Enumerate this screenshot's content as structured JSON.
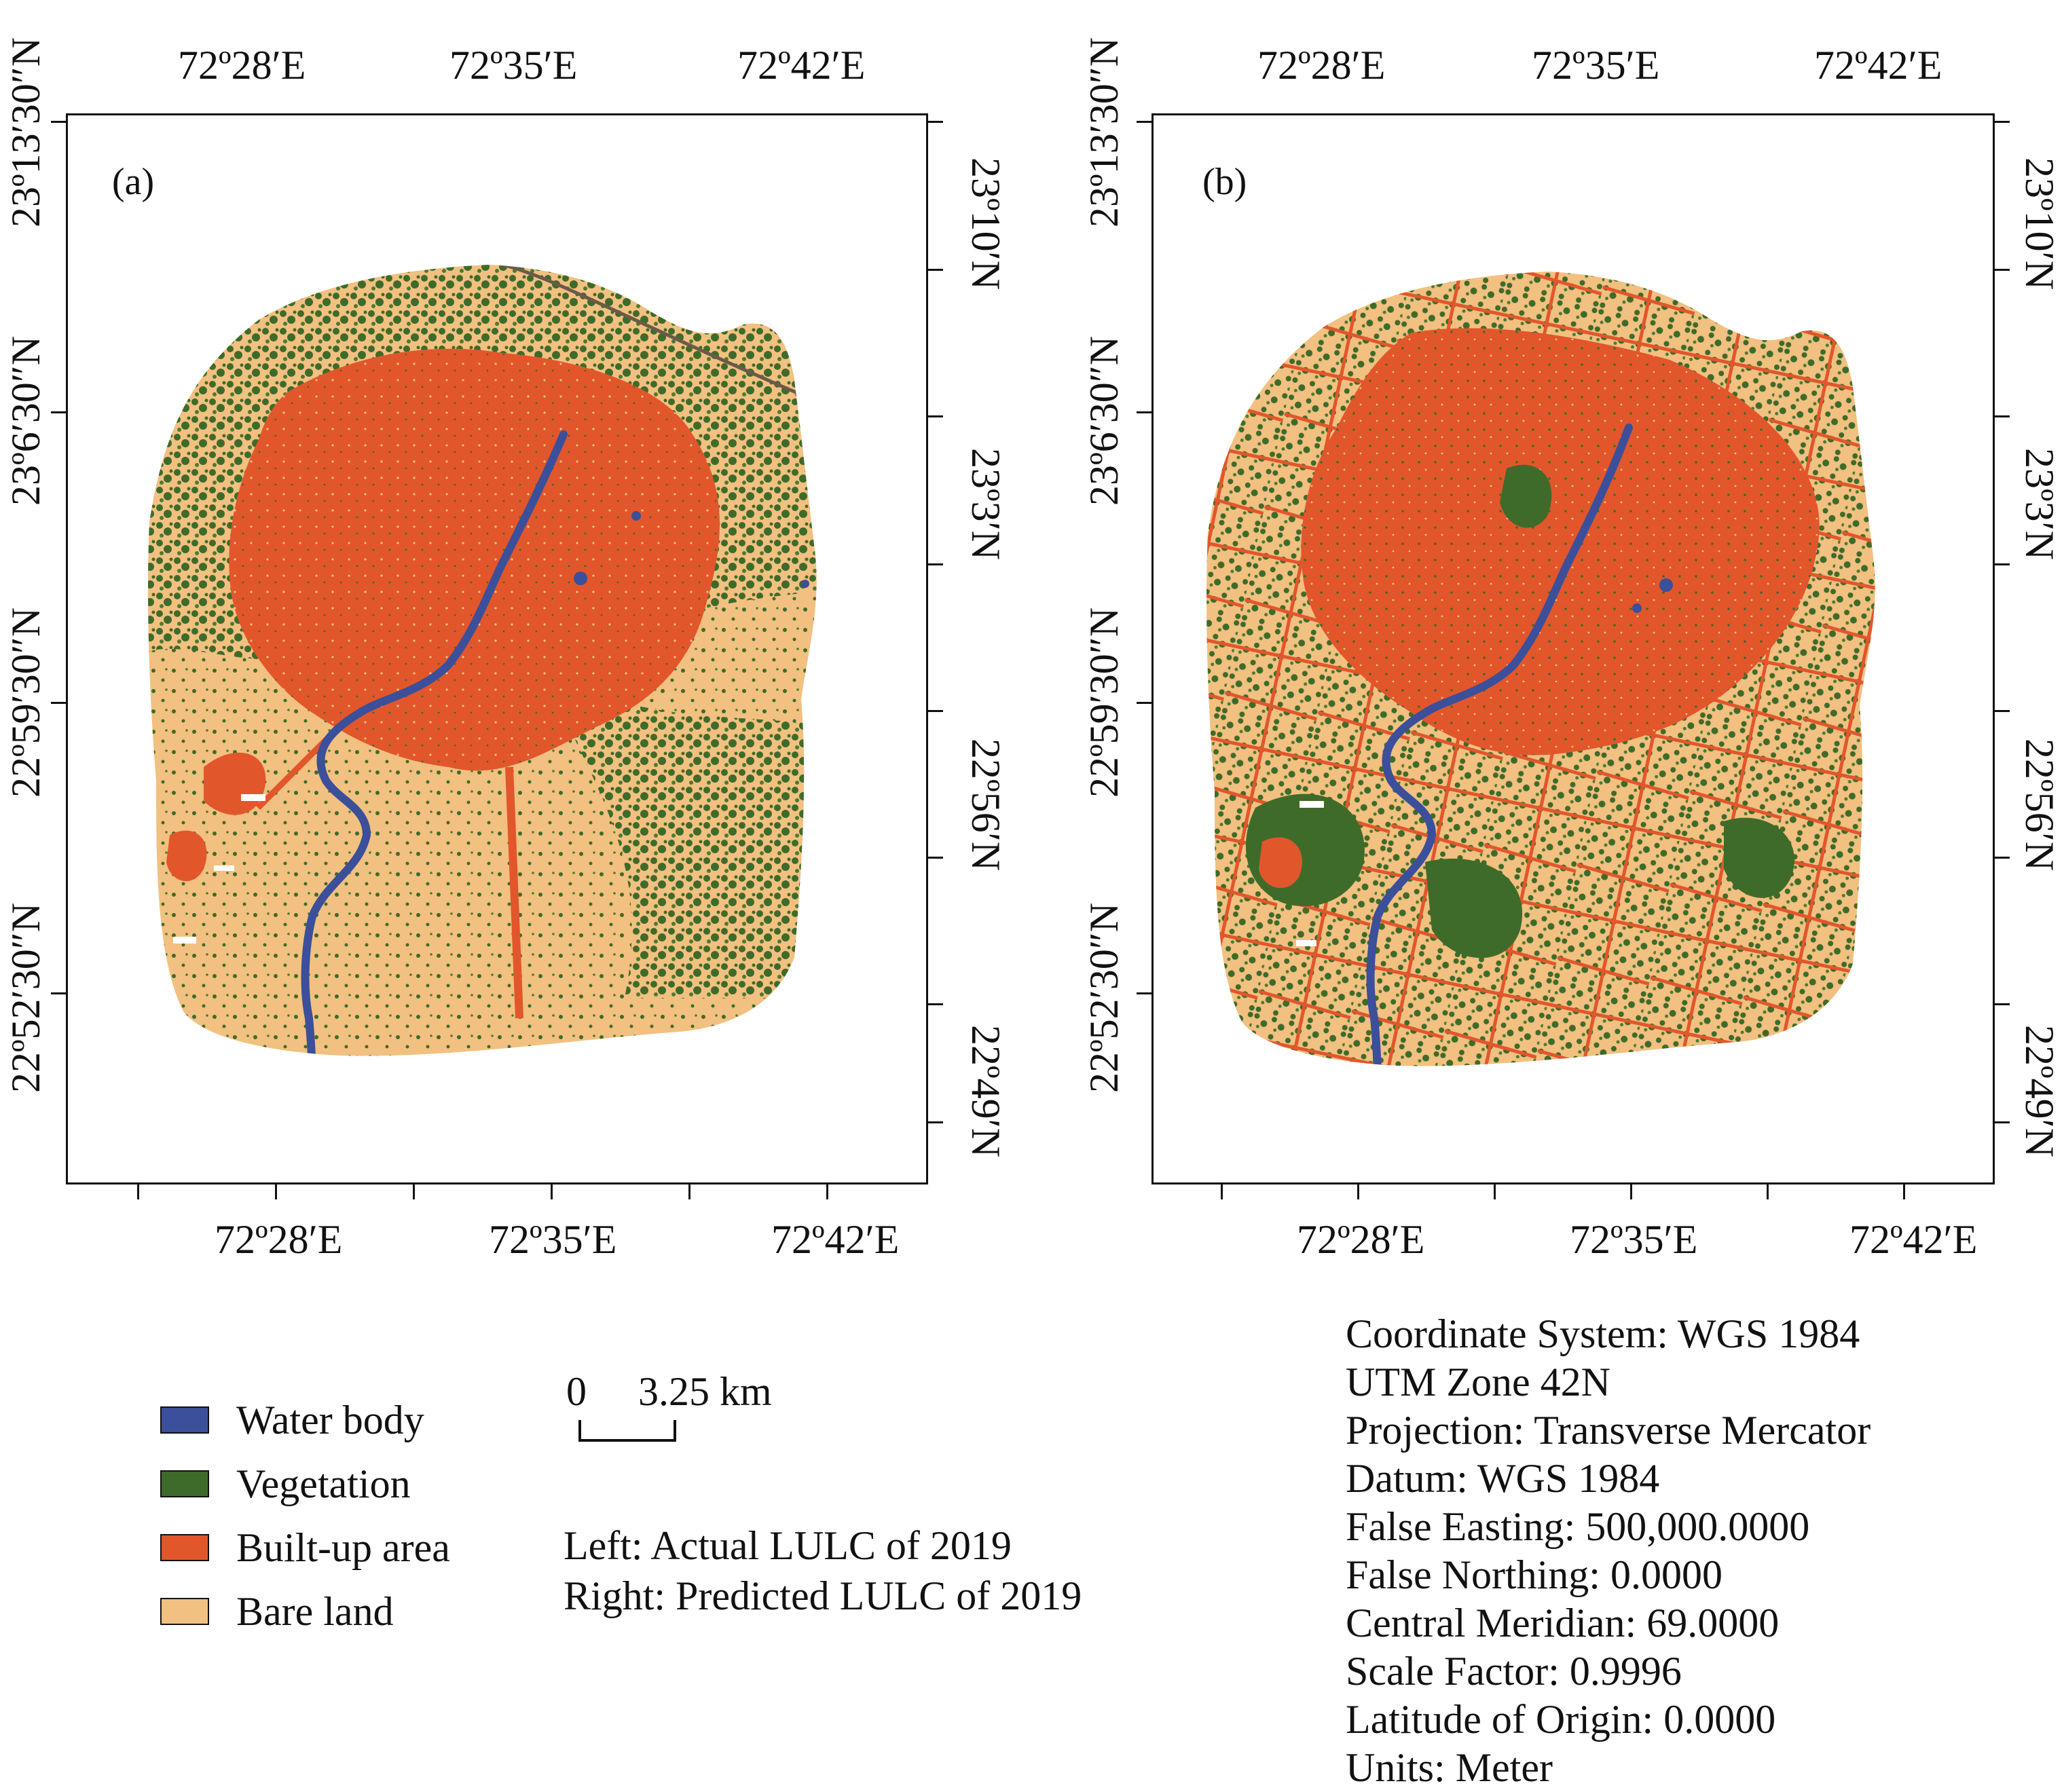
{
  "panels": [
    {
      "id": "a",
      "label": "(a)",
      "title": "Actual LULC of 2019"
    },
    {
      "id": "b",
      "label": "(b)",
      "title": "Predicted LULC of 2019"
    }
  ],
  "axes": {
    "top_lon": [
      "72º28′E",
      "72º35′E",
      "72º42′E"
    ],
    "bottom_lon": [
      "72º28′E",
      "72º35′E",
      "72º42′E"
    ],
    "left_lat": [
      "23º13′30″N",
      "23º6′30″N",
      "22º59′30″N",
      "22º52′30″N"
    ],
    "right_lat": [
      "23º10′N",
      "23º3′N",
      "22º56′N",
      "22º49′N"
    ]
  },
  "legend": {
    "items": [
      {
        "label": "Water body",
        "color": "#3b4f9a"
      },
      {
        "label": "Vegetation",
        "color": "#3e6b2a"
      },
      {
        "label": "Built-up area",
        "color": "#e2562c"
      },
      {
        "label": "Bare land",
        "color": "#f2c080"
      }
    ]
  },
  "scale_bar": {
    "start": "0",
    "end": "3.25 km"
  },
  "caption": {
    "left": "Left: Actual LULC of 2019",
    "right": "Right: Predicted LULC of 2019"
  },
  "projection_info": [
    "Coordinate System: WGS 1984",
    "UTM Zone 42N",
    "Projection: Transverse Mercator",
    "Datum: WGS 1984",
    "False Easting: 500,000.0000",
    "False Northing: 0.0000",
    "Central Meridian: 69.0000",
    "Scale Factor: 0.9996",
    "Latitude of Origin: 0.0000",
    "Units: Meter"
  ],
  "colors": {
    "water": "#3b4f9a",
    "vegetation": "#3e6b2a",
    "built_up": "#e2562c",
    "bare": "#f2c080",
    "frame": "#111111"
  }
}
